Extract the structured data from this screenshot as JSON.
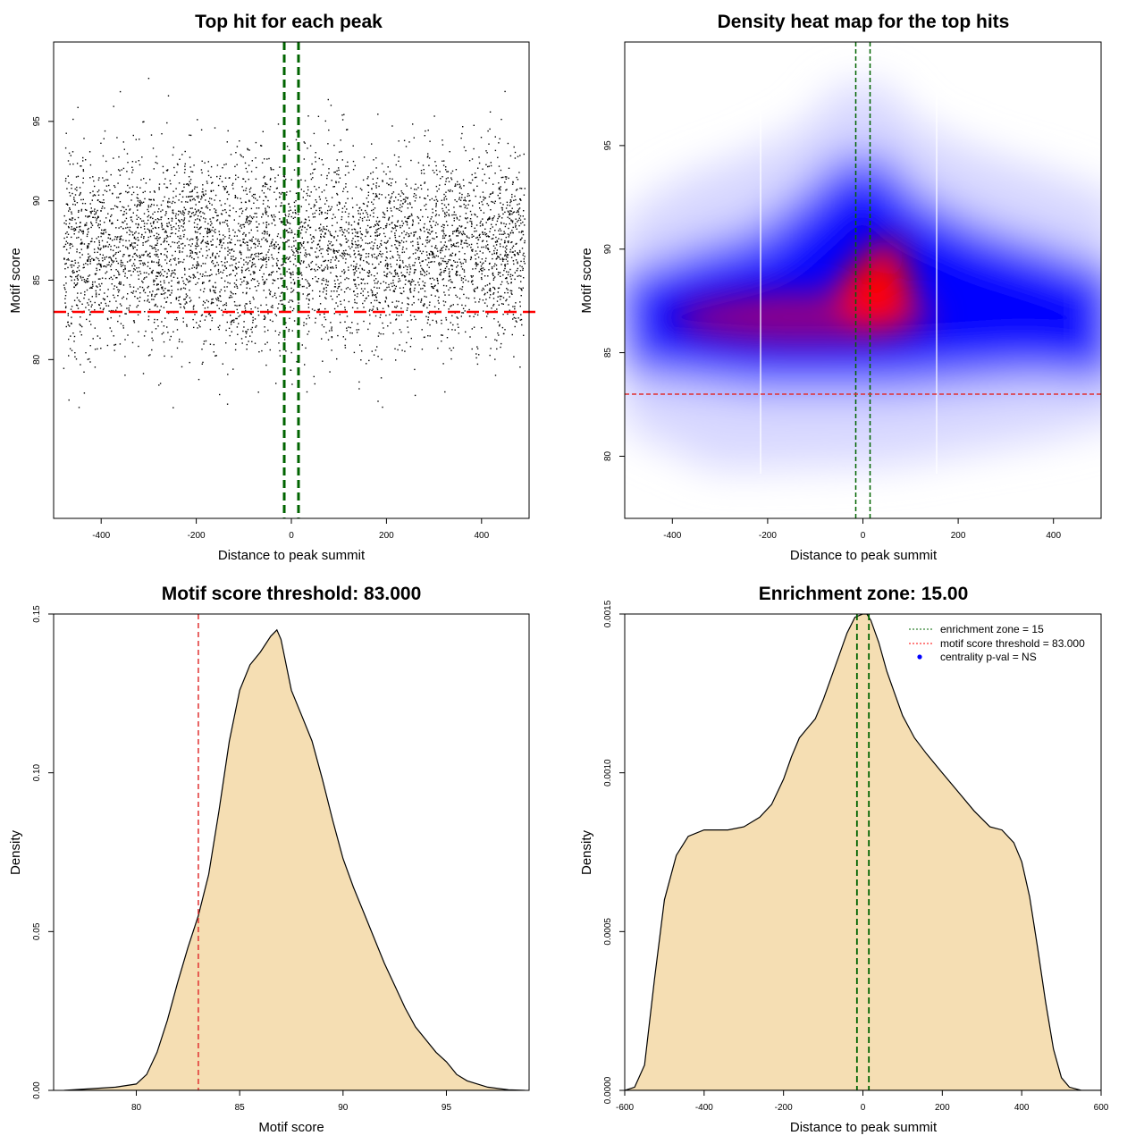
{
  "chart_data": [
    {
      "type": "scatter",
      "title": "Top hit for each peak",
      "xlabel": "Distance to peak summit",
      "ylabel": "Motif score",
      "xlim": [
        -500,
        500
      ],
      "ylim": [
        70,
        100
      ],
      "xticks": [
        "-400",
        "-200",
        "0",
        "200",
        "400"
      ],
      "yticks": [
        "80",
        "85",
        "90",
        "95"
      ],
      "vlines": [
        -15,
        15
      ],
      "hline": 83,
      "points": {
        "x_range": [
          -480,
          490
        ],
        "y_mean": 87,
        "y_sd": 3,
        "count": 5000
      }
    },
    {
      "type": "heatmap",
      "title": "Density heat map for the top hits",
      "xlabel": "Distance to peak summit",
      "ylabel": "Motif score",
      "xlim": [
        -500,
        500
      ],
      "ylim": [
        77,
        100
      ],
      "xticks": [
        "-400",
        "-200",
        "0",
        "200",
        "400"
      ],
      "yticks": [
        "80",
        "85",
        "90",
        "95"
      ],
      "vlines": [
        -15,
        15
      ],
      "hline": 83,
      "colors": [
        "#ffffff",
        "#0000ff",
        "#ff0000"
      ]
    },
    {
      "type": "area",
      "title": "Motif score threshold: 83.000",
      "xlabel": "Motif score",
      "ylabel": "Density",
      "xlim": [
        76,
        99
      ],
      "ylim": [
        0,
        0.15
      ],
      "xticks": [
        "80",
        "85",
        "90",
        "95"
      ],
      "yticks": [
        "0.00",
        "0.05",
        "0.10",
        "0.15"
      ],
      "vline": 83,
      "fill": "#f5deb3",
      "x": [
        76.5,
        79,
        80,
        80.5,
        81,
        81.5,
        82,
        82.5,
        83,
        83.5,
        84,
        84.5,
        85,
        85.5,
        86,
        86.5,
        86.8,
        87,
        87.5,
        88,
        88.5,
        89,
        89.5,
        90,
        90.5,
        91,
        91.5,
        92,
        92.5,
        93,
        93.5,
        94,
        94.5,
        95,
        95.5,
        96,
        97,
        98,
        98.8
      ],
      "y": [
        0,
        0.001,
        0.002,
        0.005,
        0.012,
        0.022,
        0.034,
        0.045,
        0.055,
        0.068,
        0.088,
        0.11,
        0.126,
        0.134,
        0.138,
        0.143,
        0.145,
        0.142,
        0.126,
        0.118,
        0.11,
        0.098,
        0.085,
        0.073,
        0.064,
        0.056,
        0.048,
        0.04,
        0.033,
        0.026,
        0.02,
        0.016,
        0.012,
        0.009,
        0.005,
        0.003,
        0.001,
        0.0002,
        0
      ]
    },
    {
      "type": "area",
      "title": "Enrichment zone: 15.00",
      "xlabel": "Distance to peak summit",
      "ylabel": "Density",
      "xlim": [
        -600,
        600
      ],
      "ylim": [
        0,
        0.0015
      ],
      "xticks": [
        "-600",
        "-400",
        "-200",
        "0",
        "200",
        "400",
        "600"
      ],
      "yticks": [
        "0.0000",
        "0.0005",
        "0.0010",
        "0.0015"
      ],
      "vlines": [
        -15,
        15
      ],
      "fill": "#f5deb3",
      "x": [
        -600,
        -575,
        -550,
        -525,
        -500,
        -470,
        -440,
        -400,
        -370,
        -340,
        -300,
        -260,
        -230,
        -200,
        -180,
        -160,
        -140,
        -120,
        -100,
        -80,
        -60,
        -40,
        -20,
        0,
        10,
        20,
        40,
        60,
        80,
        100,
        130,
        160,
        200,
        240,
        280,
        320,
        350,
        380,
        400,
        420,
        440,
        460,
        480,
        500,
        520,
        550,
        580,
        600
      ],
      "y": [
        0,
        1e-05,
        8e-05,
        0.00035,
        0.0006,
        0.00074,
        0.0008,
        0.00082,
        0.00082,
        0.00082,
        0.00083,
        0.00086,
        0.0009,
        0.00098,
        0.00105,
        0.00111,
        0.00114,
        0.00117,
        0.00123,
        0.0013,
        0.00137,
        0.00144,
        0.00149,
        0.0015,
        0.0015,
        0.00148,
        0.00141,
        0.00132,
        0.00125,
        0.00118,
        0.00111,
        0.00106,
        0.001,
        0.00094,
        0.00088,
        0.00083,
        0.00082,
        0.00078,
        0.00072,
        0.00061,
        0.00045,
        0.00028,
        0.00013,
        4e-05,
        1e-05,
        0,
        0,
        0
      ],
      "legend": {
        "position": "top-right",
        "entries": [
          {
            "label": "enrichment zone = 15",
            "color": "#006400",
            "style": "dotted-line"
          },
          {
            "label": "motif score threshold = 83.000",
            "color": "#ff0000",
            "style": "dotted-line"
          },
          {
            "label": "centrality p-val = NS",
            "color": "#0000ff",
            "style": "point"
          }
        ]
      }
    }
  ]
}
